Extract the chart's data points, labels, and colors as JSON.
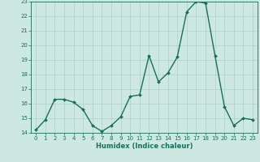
{
  "x": [
    0,
    1,
    2,
    3,
    4,
    5,
    6,
    7,
    8,
    9,
    10,
    11,
    12,
    13,
    14,
    15,
    16,
    17,
    18,
    19,
    20,
    21,
    22,
    23
  ],
  "y": [
    14.2,
    14.9,
    16.3,
    16.3,
    16.1,
    15.6,
    14.5,
    14.1,
    14.5,
    15.1,
    16.5,
    16.6,
    19.3,
    17.5,
    18.1,
    19.2,
    22.3,
    23.0,
    22.9,
    19.3,
    15.8,
    14.5,
    15.0,
    14.9
  ],
  "xlabel": "Humidex (Indice chaleur)",
  "ylim": [
    14,
    23
  ],
  "xlim": [
    -0.5,
    23.5
  ],
  "bg_color": "#cde8e0",
  "grid_color": "#aecfc7",
  "line_color": "#1a6e5e",
  "marker_color": "#1a6e5e",
  "yticks": [
    14,
    15,
    16,
    17,
    18,
    19,
    20,
    21,
    22,
    23
  ],
  "xticks": [
    0,
    1,
    2,
    3,
    4,
    5,
    6,
    7,
    8,
    9,
    10,
    11,
    12,
    13,
    14,
    15,
    16,
    17,
    18,
    19,
    20,
    21,
    22,
    23
  ],
  "xlabel_fontsize": 6.0,
  "tick_fontsize": 5.0
}
